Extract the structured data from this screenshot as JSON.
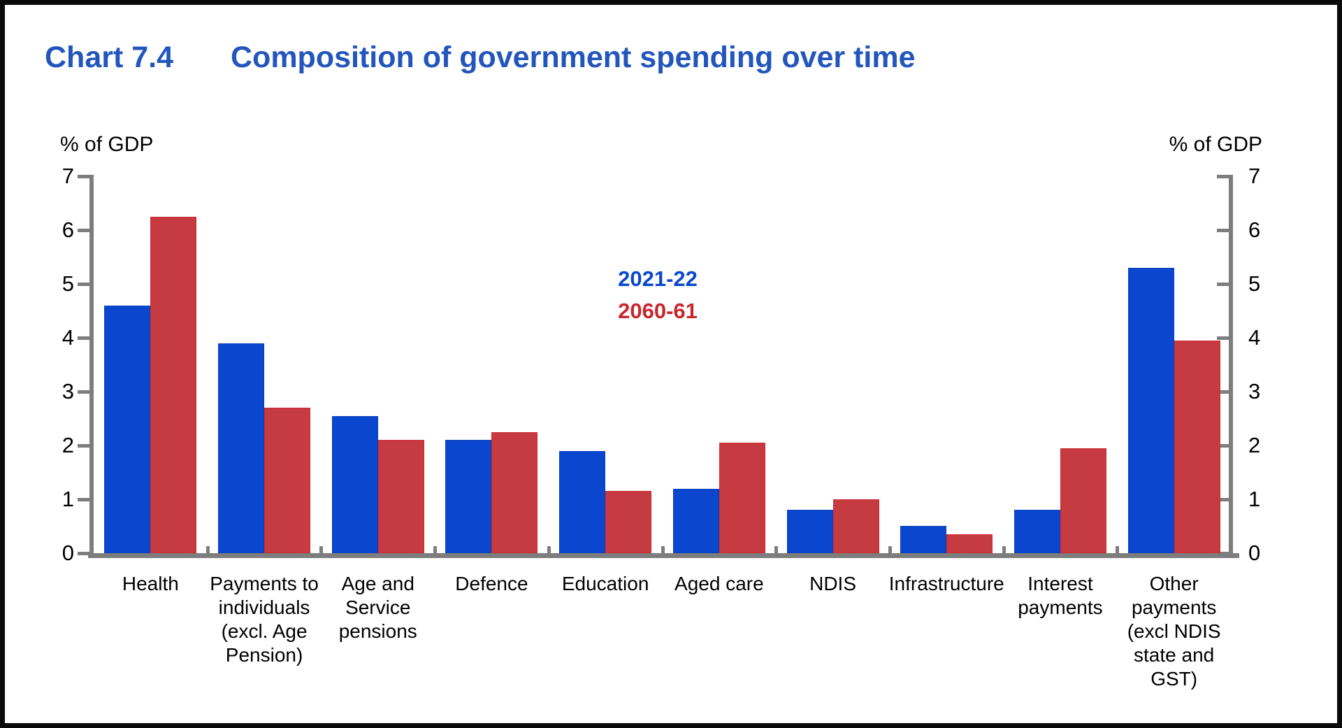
{
  "title": {
    "prefix": "Chart 7.4",
    "text": "Composition of government spending over time"
  },
  "y_axis_unit_left": "% of GDP",
  "y_axis_unit_right": "% of GDP",
  "legend": [
    {
      "label": "2021-22",
      "color": "#0B47CE"
    },
    {
      "label": "2060-61",
      "color": "#C9262E"
    }
  ],
  "colors": {
    "bar_blue": "#0B47CE",
    "bar_blue_edge": "#0A3FBC",
    "bar_red": "#C63A41",
    "bar_red_edge": "#D02A2E",
    "axis_grey": "#7D7D7D",
    "title_blue": "#2356BC",
    "text_black": "#000000",
    "frame_black": "#0A0A0A",
    "background": "#FFFFFF"
  },
  "chart_data": {
    "type": "bar",
    "title": "Chart 7.4 Composition of government spending over time",
    "xlabel": "",
    "ylabel": "% of GDP",
    "ylim": [
      0,
      7
    ],
    "yticks": [
      0,
      1,
      2,
      3,
      4,
      5,
      6,
      7
    ],
    "grid": "off",
    "legend_position": "inside-top-center",
    "categories": [
      "Health",
      "Payments to\nindividuals\n(excl. Age\nPension)",
      "Age and\nService\npensions",
      "Defence",
      "Education",
      "Aged care",
      "NDIS",
      "Infrastructure",
      "Interest\npayments",
      "Other\npayments\n(excl NDIS\nstate and\nGST)"
    ],
    "series": [
      {
        "name": "2021-22",
        "color": "#0B47CE",
        "values": [
          4.6,
          3.9,
          2.55,
          2.1,
          1.9,
          1.2,
          0.8,
          0.5,
          0.8,
          5.3
        ]
      },
      {
        "name": "2060-61",
        "color": "#C63A41",
        "values": [
          6.25,
          2.7,
          2.1,
          2.25,
          1.15,
          2.05,
          1.0,
          0.35,
          1.95,
          3.95
        ]
      }
    ]
  }
}
